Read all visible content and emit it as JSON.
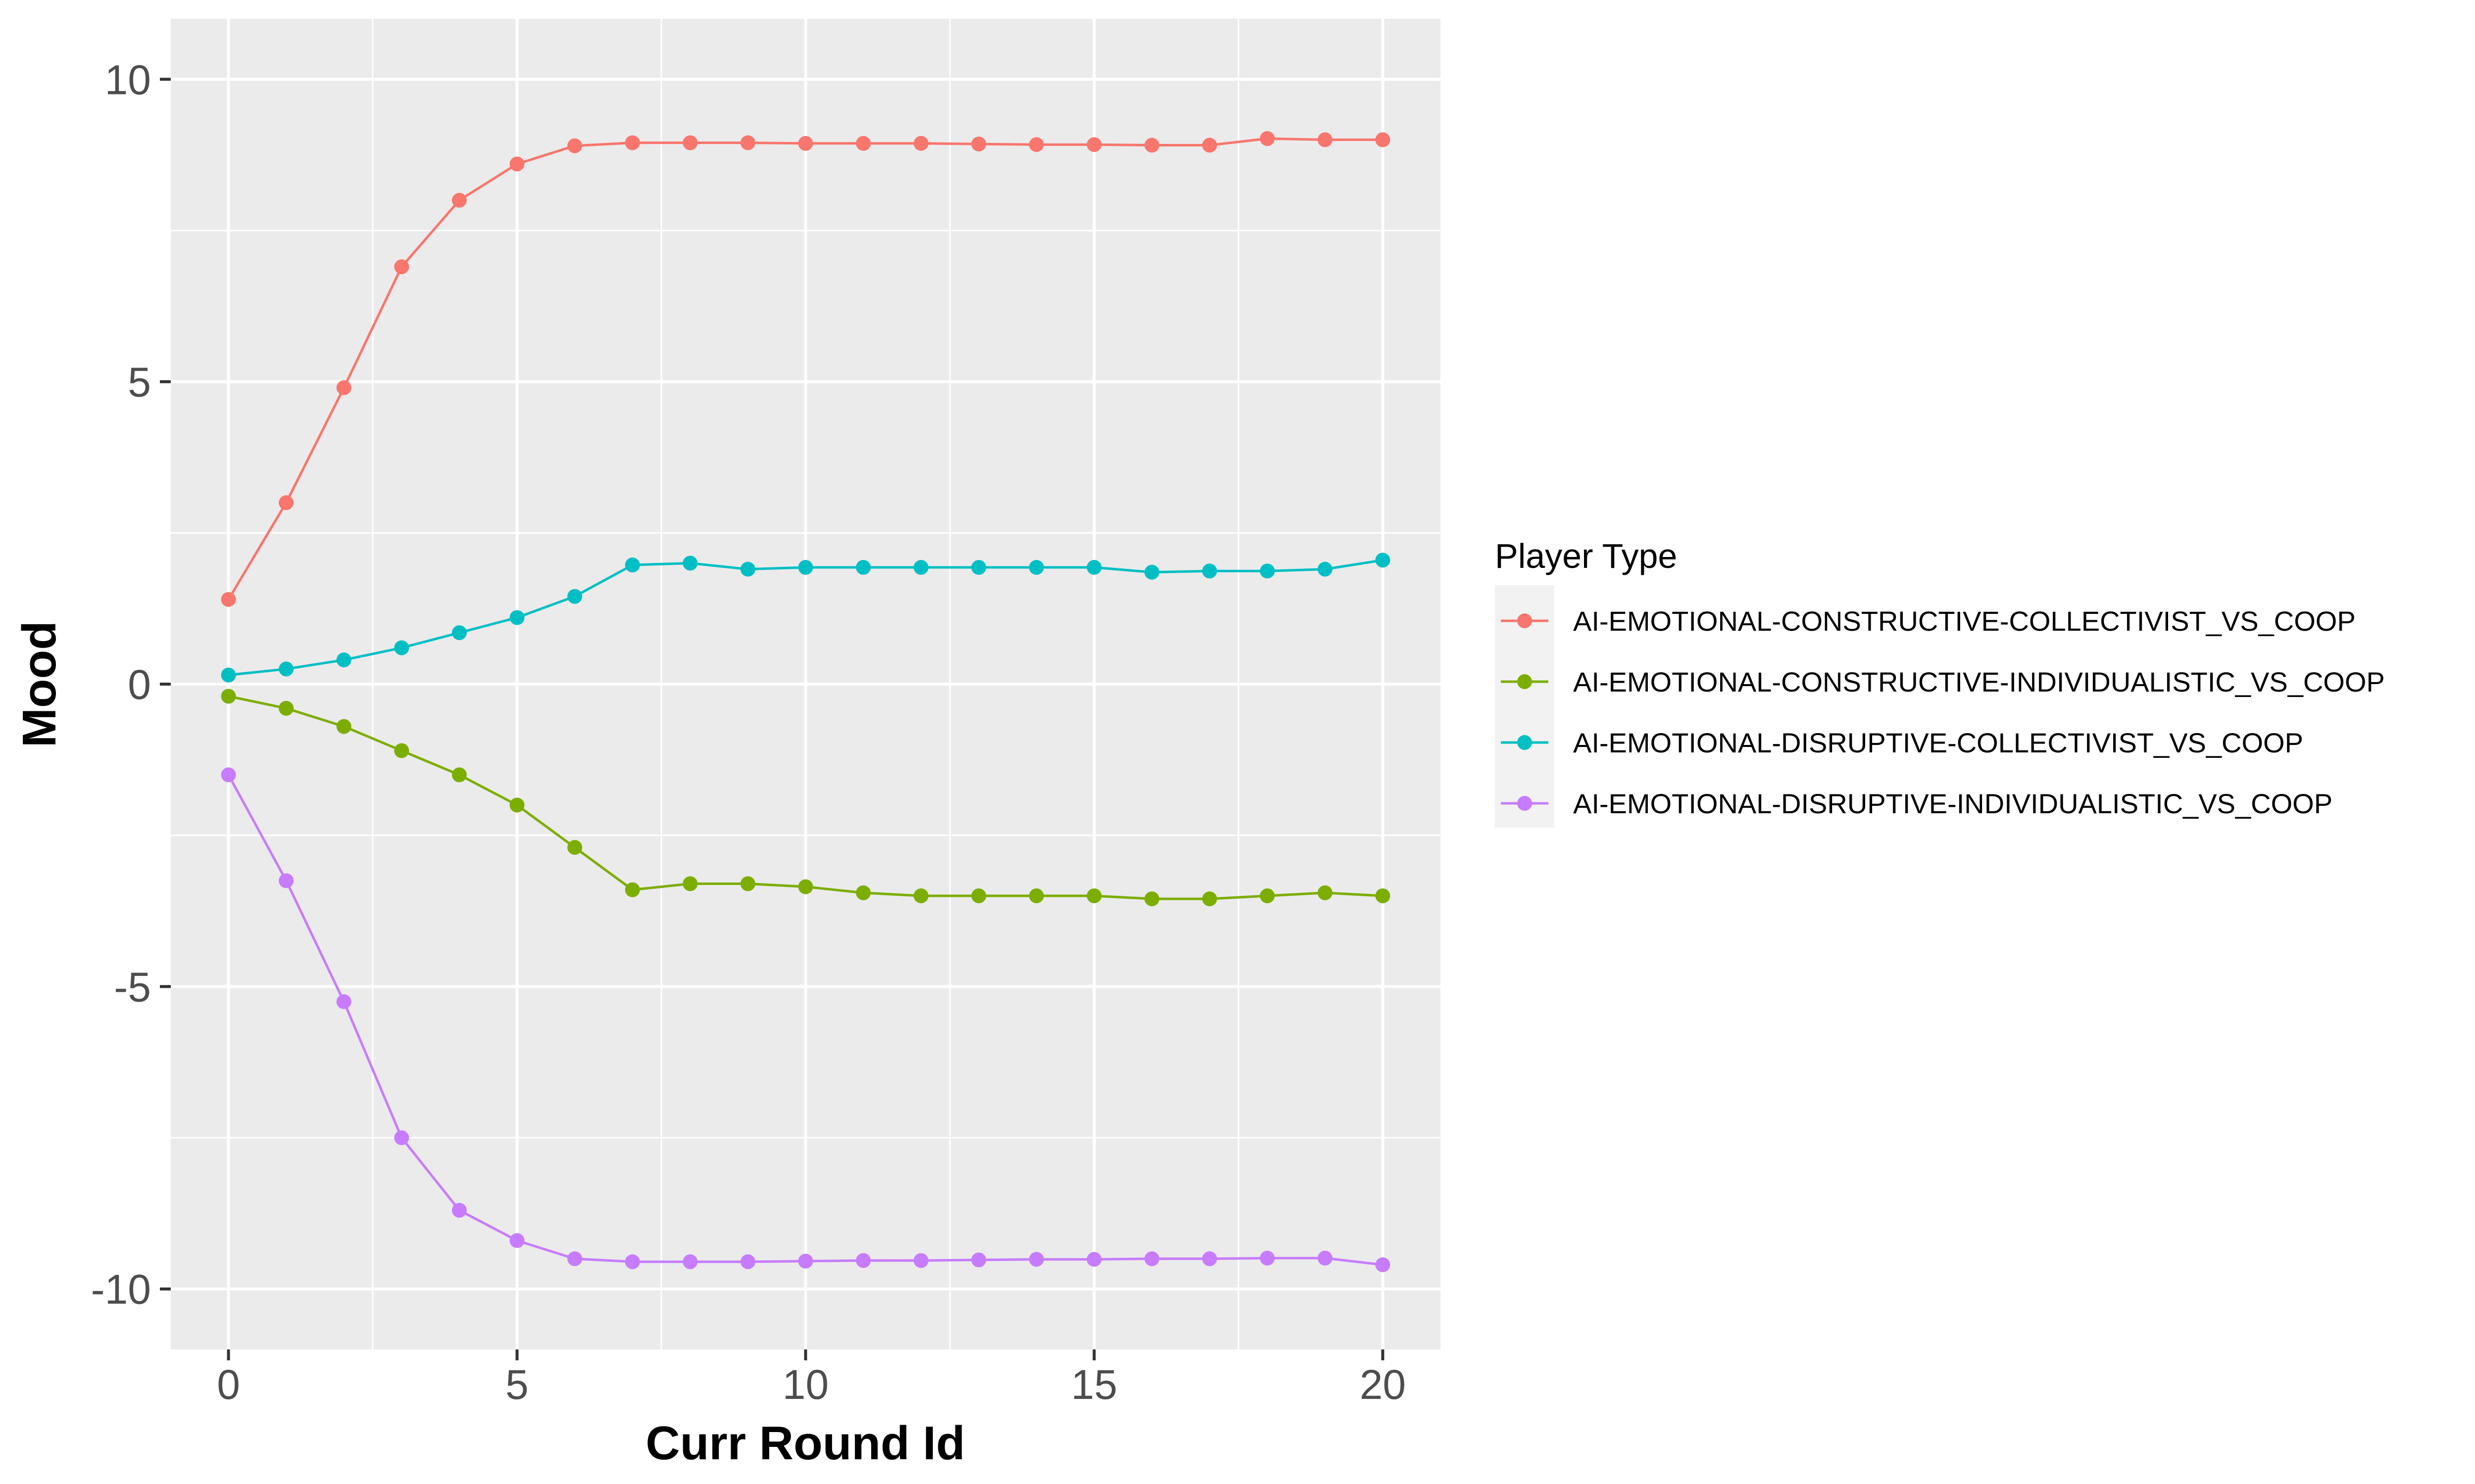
{
  "chart_data": {
    "type": "line",
    "title": "",
    "xlabel": "Curr Round Id",
    "ylabel": "Mood",
    "xlim": [
      -1,
      21
    ],
    "ylim": [
      -11,
      11
    ],
    "x_ticks": [
      0,
      5,
      10,
      15,
      20
    ],
    "x_tick_labels": [
      "0",
      "5",
      "10",
      "15",
      "20"
    ],
    "y_ticks": [
      -10,
      -5,
      0,
      5,
      10
    ],
    "y_tick_labels": [
      "-10",
      "-5",
      "0",
      "5",
      "10"
    ],
    "grid": true,
    "legend": {
      "title": "Player Type",
      "position": "right"
    },
    "x": [
      0,
      1,
      2,
      3,
      4,
      5,
      6,
      7,
      8,
      9,
      10,
      11,
      12,
      13,
      14,
      15,
      16,
      17,
      18,
      19,
      20
    ],
    "series": [
      {
        "name": "AI-EMOTIONAL-CONSTRUCTIVE-COLLECTIVIST_VS_COOP",
        "color": "#F8766D",
        "values": [
          1.4,
          3.0,
          4.9,
          6.9,
          8.0,
          8.6,
          8.9,
          8.95,
          8.95,
          8.95,
          8.94,
          8.94,
          8.94,
          8.93,
          8.92,
          8.92,
          8.91,
          8.91,
          9.02,
          9.0,
          9.0
        ]
      },
      {
        "name": "AI-EMOTIONAL-CONSTRUCTIVE-INDIVIDUALISTIC_VS_COOP",
        "color": "#7CAE00",
        "values": [
          -0.2,
          -0.4,
          -0.7,
          -1.1,
          -1.5,
          -2.0,
          -2.7,
          -3.4,
          -3.3,
          -3.3,
          -3.35,
          -3.45,
          -3.5,
          -3.5,
          -3.5,
          -3.5,
          -3.55,
          -3.55,
          -3.5,
          -3.45,
          -3.5
        ]
      },
      {
        "name": "AI-EMOTIONAL-DISRUPTIVE-COLLECTIVIST_VS_COOP",
        "color": "#00BFC4",
        "values": [
          0.15,
          0.25,
          0.4,
          0.6,
          0.85,
          1.1,
          1.45,
          1.97,
          2.0,
          1.9,
          1.93,
          1.93,
          1.93,
          1.93,
          1.93,
          1.93,
          1.85,
          1.87,
          1.87,
          1.9,
          2.05
        ]
      },
      {
        "name": "AI-EMOTIONAL-DISRUPTIVE-INDIVIDUALISTIC_VS_COOP",
        "color": "#C77CFF",
        "values": [
          -1.5,
          -3.25,
          -5.25,
          -7.5,
          -8.7,
          -9.2,
          -9.5,
          -9.55,
          -9.55,
          -9.55,
          -9.54,
          -9.53,
          -9.53,
          -9.52,
          -9.51,
          -9.51,
          -9.5,
          -9.5,
          -9.49,
          -9.49,
          -9.6
        ]
      }
    ]
  }
}
